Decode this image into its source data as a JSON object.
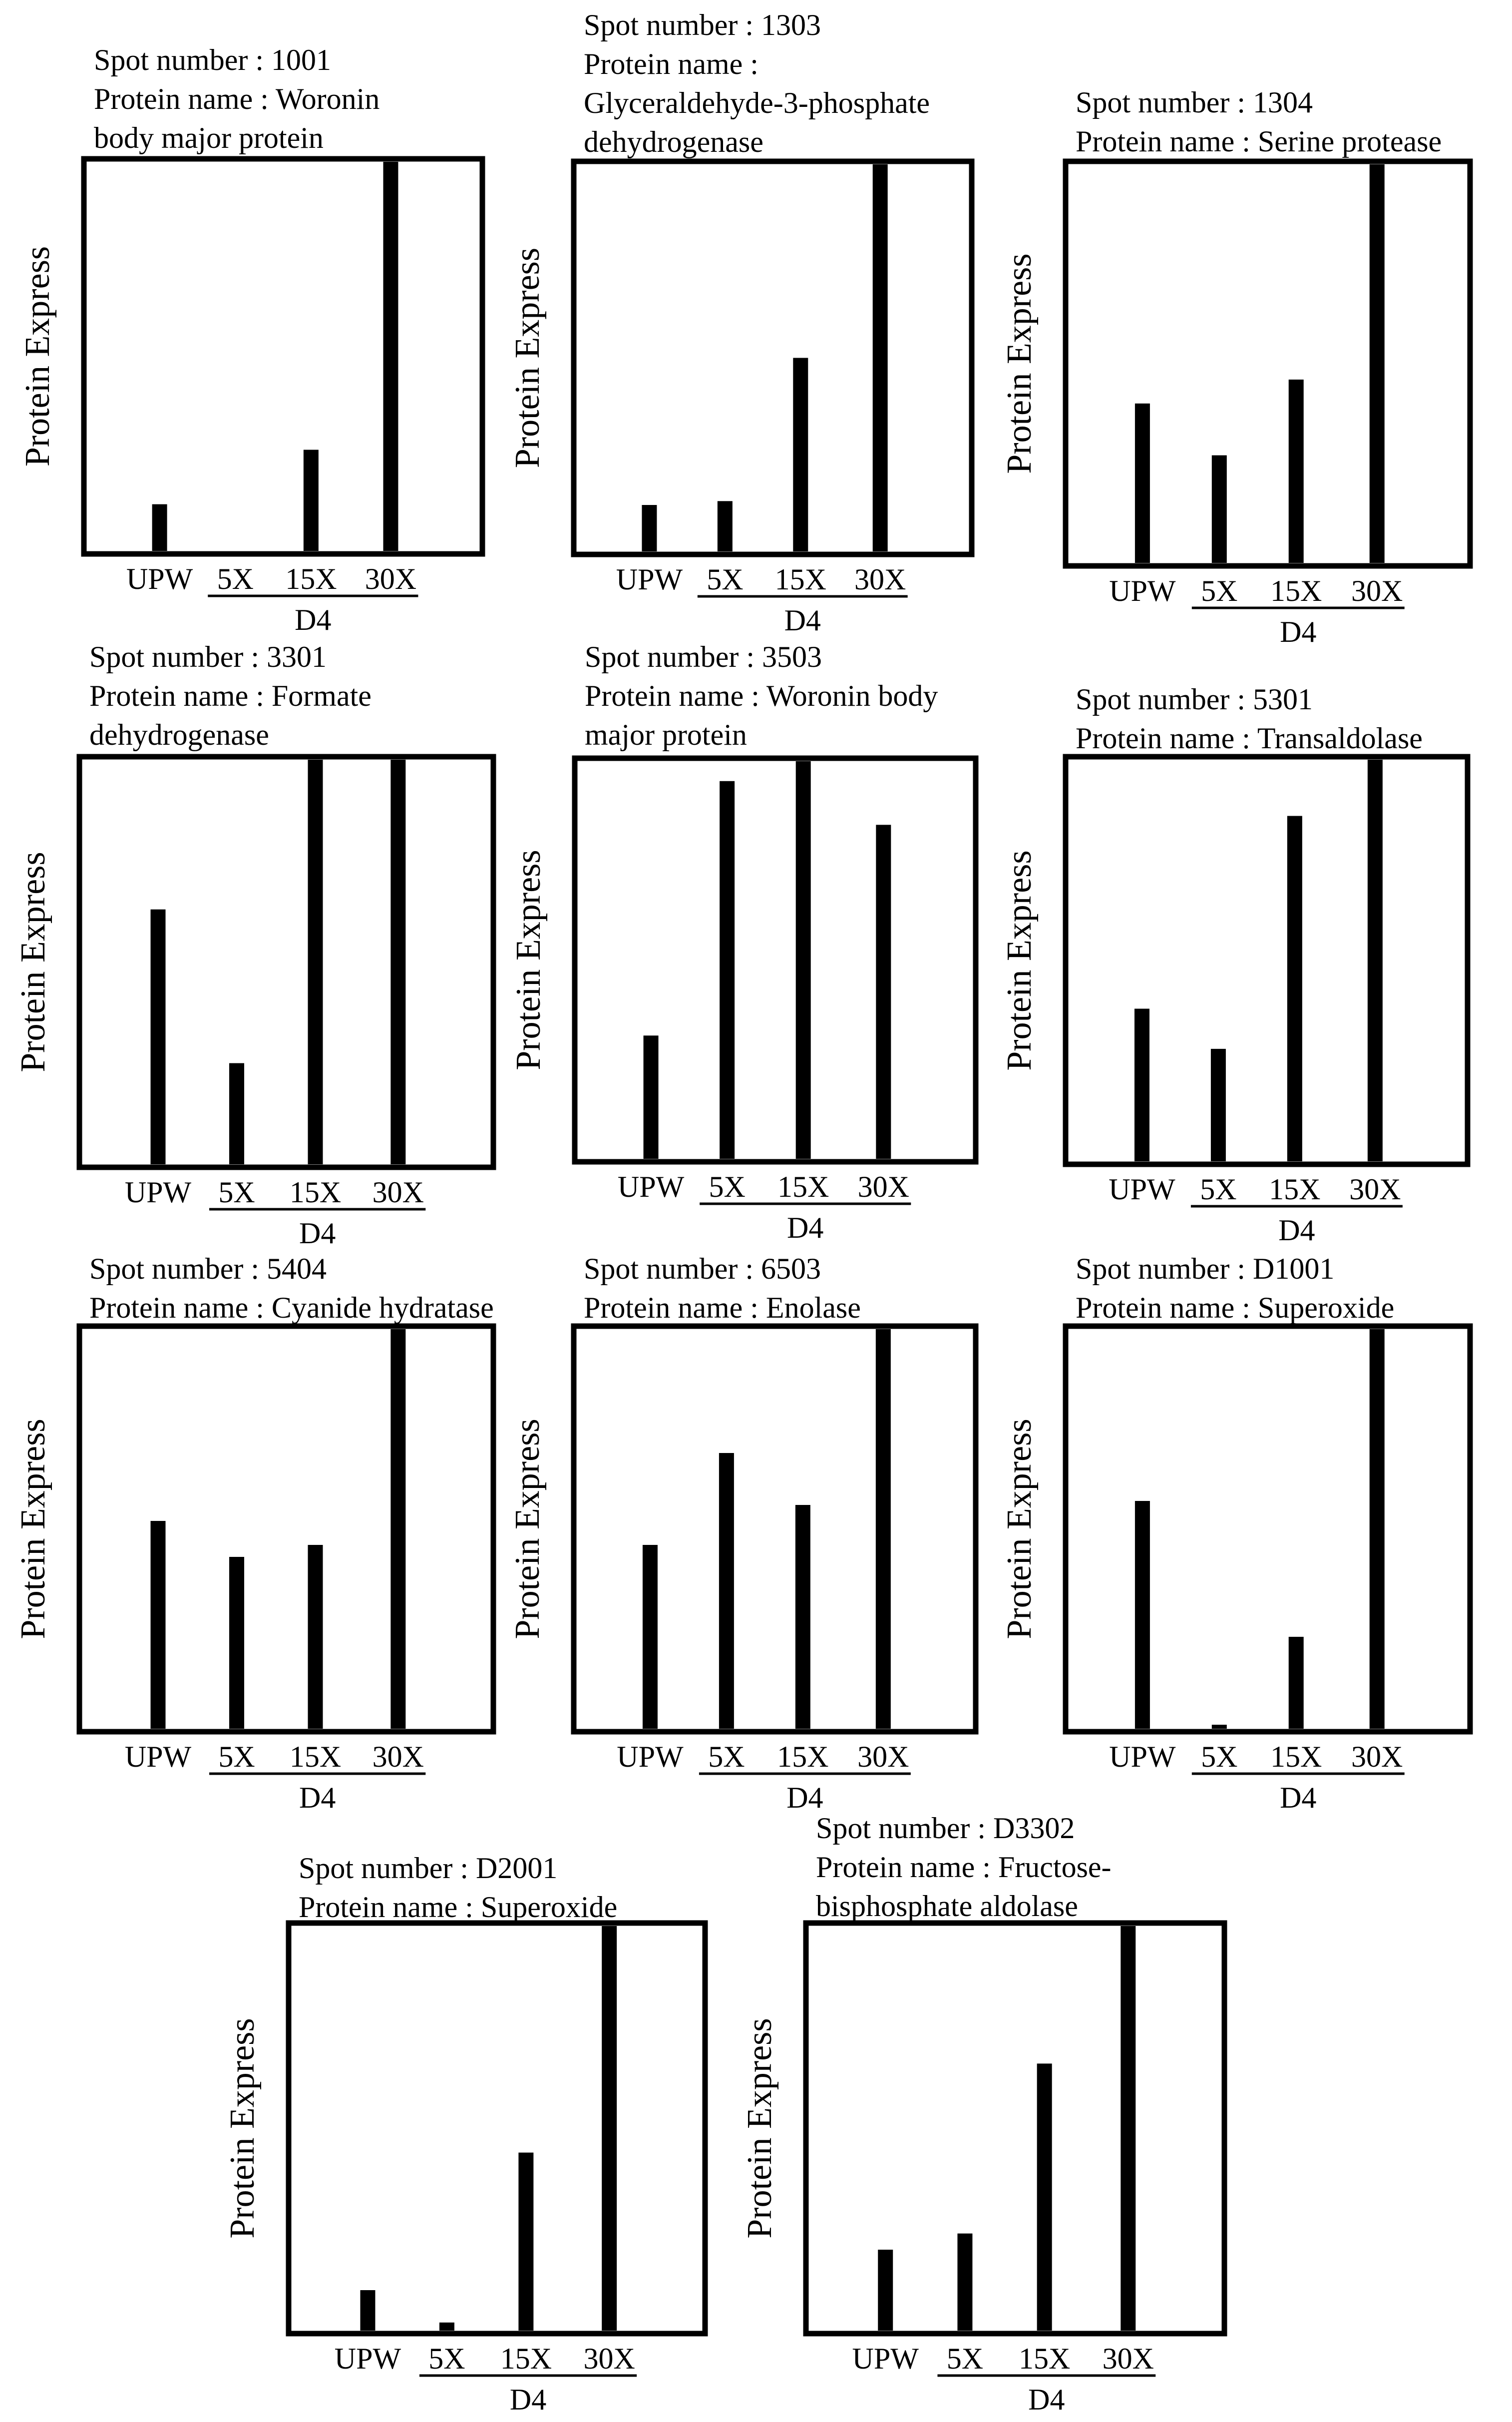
{
  "y_axis_label": "Protein Express",
  "group_label": "D4",
  "categories": [
    "UPW",
    "5X",
    "15X",
    "30X"
  ],
  "chart_data": [
    {
      "type": "bar",
      "title_lines": [
        "Spot number : 1001",
        "Protein name : Woronin",
        "body major protein"
      ],
      "ylabel": "Protein Express",
      "categories": [
        "UPW",
        "5X",
        "15X",
        "30X"
      ],
      "group_label": "D4",
      "values": [
        0.12,
        0.0,
        0.26,
        1.0
      ],
      "ylim": [
        0,
        1
      ]
    },
    {
      "type": "bar",
      "title_lines": [
        "Spot number : 1303",
        "Protein name :",
        "Glyceraldehyde-3-phosphate",
        "dehydrogenase"
      ],
      "ylabel": "Protein Express",
      "categories": [
        "UPW",
        "5X",
        "15X",
        "30X"
      ],
      "group_label": "D4",
      "values": [
        0.12,
        0.13,
        0.5,
        1.0
      ],
      "ylim": [
        0,
        1
      ]
    },
    {
      "type": "bar",
      "title_lines": [
        "Spot number : 1304",
        "Protein name : Serine protease"
      ],
      "ylabel": "Protein Express",
      "categories": [
        "UPW",
        "5X",
        "15X",
        "30X"
      ],
      "group_label": "D4",
      "values": [
        0.4,
        0.27,
        0.46,
        1.0
      ],
      "ylim": [
        0,
        1
      ]
    },
    {
      "type": "bar",
      "title_lines": [
        "Spot number : 3301",
        "Protein name : Formate",
        "dehydrogenase"
      ],
      "ylabel": "Protein Express",
      "categories": [
        "UPW",
        "5X",
        "15X",
        "30X"
      ],
      "group_label": "D4",
      "values": [
        0.63,
        0.25,
        1.0,
        1.0
      ],
      "ylim": [
        0,
        1
      ]
    },
    {
      "type": "bar",
      "title_lines": [
        "Spot number : 3503",
        "Protein name : Woronin body",
        "major protein"
      ],
      "ylabel": "Protein Express",
      "categories": [
        "UPW",
        "5X",
        "15X",
        "30X"
      ],
      "group_label": "D4",
      "values": [
        0.31,
        0.95,
        1.0,
        0.84
      ],
      "ylim": [
        0,
        1
      ]
    },
    {
      "type": "bar",
      "title_lines": [
        "Spot number : 5301",
        "Protein name : Transaldolase"
      ],
      "ylabel": "Protein Express",
      "categories": [
        "UPW",
        "5X",
        "15X",
        "30X"
      ],
      "group_label": "D4",
      "values": [
        0.38,
        0.28,
        0.86,
        1.0
      ],
      "ylim": [
        0,
        1
      ]
    },
    {
      "type": "bar",
      "title_lines": [
        "Spot number : 5404",
        "Protein name : Cyanide hydratase"
      ],
      "ylabel": "Protein Express",
      "categories": [
        "UPW",
        "5X",
        "15X",
        "30X"
      ],
      "group_label": "D4",
      "values": [
        0.52,
        0.43,
        0.46,
        1.0
      ],
      "ylim": [
        0,
        1
      ]
    },
    {
      "type": "bar",
      "title_lines": [
        "Spot number : 6503",
        "Protein name : Enolase"
      ],
      "ylabel": "Protein Express",
      "categories": [
        "UPW",
        "5X",
        "15X",
        "30X"
      ],
      "group_label": "D4",
      "values": [
        0.46,
        0.69,
        0.56,
        1.0
      ],
      "ylim": [
        0,
        1
      ]
    },
    {
      "type": "bar",
      "title_lines": [
        "Spot number : D1001",
        "Protein name : Superoxide"
      ],
      "ylabel": "Protein Express",
      "categories": [
        "UPW",
        "5X",
        "15X",
        "30X"
      ],
      "group_label": "D4",
      "values": [
        0.57,
        0.01,
        0.23,
        1.0
      ],
      "ylim": [
        0,
        1
      ]
    },
    {
      "type": "bar",
      "title_lines": [
        "Spot number : D2001",
        "Protein name : Superoxide"
      ],
      "ylabel": "Protein Express",
      "categories": [
        "UPW",
        "5X",
        "15X",
        "30X"
      ],
      "group_label": "D4",
      "values": [
        0.1,
        0.02,
        0.44,
        1.0
      ],
      "ylim": [
        0,
        1
      ]
    },
    {
      "type": "bar",
      "title_lines": [
        "Spot number : D3302",
        "Protein name : Fructose-",
        "bisphosphate aldolase"
      ],
      "ylabel": "Protein Express",
      "categories": [
        "UPW",
        "5X",
        "15X",
        "30X"
      ],
      "group_label": "D4",
      "values": [
        0.2,
        0.24,
        0.66,
        1.0
      ],
      "ylim": [
        0,
        1
      ]
    }
  ]
}
